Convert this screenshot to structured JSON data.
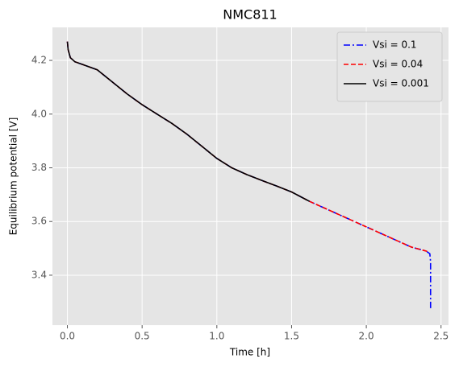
{
  "chart_data": {
    "type": "line",
    "title": "NMC811",
    "x_label": "Time [h]",
    "y_label": "Equilibrium potential [V]",
    "xlim": [
      -0.1,
      2.55
    ],
    "ylim": [
      3.214,
      4.323
    ],
    "xticks": [
      {
        "value": 0,
        "label": "0.0"
      },
      {
        "value": 0.5,
        "label": "0.5"
      },
      {
        "value": 1,
        "label": "1.0"
      },
      {
        "value": 1.5,
        "label": "1.5"
      },
      {
        "value": 2,
        "label": "2.0"
      },
      {
        "value": 2.5,
        "label": "2.5"
      }
    ],
    "yticks": [
      3.4,
      3.6,
      3.8,
      {
        "value": 4,
        "label": "4.0"
      },
      4.2
    ],
    "grid": true,
    "legend": "upper right",
    "series": [
      {
        "name": "Vsi = 0.1",
        "color": "#0000ff",
        "linestyle": "dashdot",
        "x": [
          0,
          0.005,
          0.02,
          0.05,
          0.1,
          0.2,
          0.3,
          0.4,
          0.5,
          0.6,
          0.7,
          0.8,
          0.9,
          1.0,
          1.1,
          1.2,
          1.3,
          1.4,
          1.5,
          1.62,
          1.7,
          1.8,
          1.9,
          2.0,
          2.1,
          2.2,
          2.3,
          2.4,
          2.425,
          2.43,
          2.43
        ],
        "values": [
          4.27,
          4.24,
          4.21,
          4.195,
          4.185,
          4.165,
          4.12,
          4.075,
          4.035,
          4.0,
          3.965,
          3.925,
          3.88,
          3.835,
          3.8,
          3.775,
          3.753,
          3.732,
          3.71,
          3.675,
          3.655,
          3.63,
          3.605,
          3.58,
          3.555,
          3.53,
          3.505,
          3.49,
          3.48,
          3.45,
          3.27
        ]
      },
      {
        "name": "Vsi = 0.04",
        "color": "#ff0000",
        "linestyle": "dashed",
        "x": [
          0,
          0.005,
          0.02,
          0.05,
          0.1,
          0.2,
          0.3,
          0.4,
          0.5,
          0.6,
          0.7,
          0.8,
          0.9,
          1.0,
          1.1,
          1.2,
          1.3,
          1.4,
          1.5,
          1.62,
          1.7,
          1.8,
          1.9,
          2.0,
          2.1,
          2.2,
          2.3,
          2.4,
          2.42
        ],
        "values": [
          4.27,
          4.24,
          4.21,
          4.195,
          4.185,
          4.165,
          4.12,
          4.075,
          4.035,
          4.0,
          3.965,
          3.925,
          3.88,
          3.835,
          3.8,
          3.775,
          3.753,
          3.732,
          3.71,
          3.675,
          3.655,
          3.63,
          3.605,
          3.58,
          3.555,
          3.53,
          3.505,
          3.49,
          3.485
        ]
      },
      {
        "name": "Vsi = 0.001",
        "color": "#000000",
        "linestyle": "solid",
        "x": [
          0,
          0.005,
          0.02,
          0.05,
          0.1,
          0.2,
          0.3,
          0.4,
          0.5,
          0.6,
          0.7,
          0.8,
          0.9,
          1.0,
          1.1,
          1.2,
          1.3,
          1.4,
          1.5,
          1.62
        ],
        "values": [
          4.27,
          4.24,
          4.21,
          4.195,
          4.185,
          4.165,
          4.12,
          4.075,
          4.035,
          4.0,
          3.965,
          3.925,
          3.88,
          3.835,
          3.8,
          3.775,
          3.753,
          3.732,
          3.71,
          3.675
        ]
      }
    ]
  }
}
